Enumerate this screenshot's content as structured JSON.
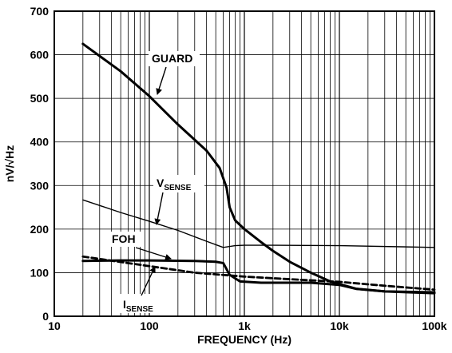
{
  "chart_data": {
    "type": "line",
    "xlabel": "FREQUENCY (Hz)",
    "ylabel": "nV/√Hz",
    "xscale": "log",
    "xlim": [
      10,
      100000
    ],
    "ylim": [
      0,
      700
    ],
    "x_ticks": [
      10,
      100,
      1000,
      10000,
      100000
    ],
    "x_tick_labels": [
      "10",
      "100",
      "1k",
      "10k",
      "100k"
    ],
    "y_ticks": [
      0,
      100,
      200,
      300,
      400,
      500,
      600,
      700
    ],
    "y_tick_labels": [
      "0",
      "100",
      "200",
      "300",
      "400",
      "500",
      "600",
      "700"
    ],
    "grid": true,
    "series": [
      {
        "name": "GUARD",
        "style": "thick-solid",
        "points": [
          [
            20,
            625
          ],
          [
            50,
            562
          ],
          [
            100,
            505
          ],
          [
            200,
            440
          ],
          [
            400,
            380
          ],
          [
            550,
            340
          ],
          [
            650,
            295
          ],
          [
            700,
            250
          ],
          [
            800,
            220
          ],
          [
            1000,
            200
          ],
          [
            1500,
            170
          ],
          [
            2000,
            150
          ],
          [
            3000,
            125
          ],
          [
            5000,
            100
          ],
          [
            8000,
            80
          ],
          [
            15000,
            63
          ],
          [
            30000,
            57
          ],
          [
            100000,
            53
          ]
        ]
      },
      {
        "name": "VSENSE",
        "style": "thin-solid",
        "points": [
          [
            20,
            267
          ],
          [
            50,
            238
          ],
          [
            100,
            218
          ],
          [
            200,
            197
          ],
          [
            400,
            172
          ],
          [
            600,
            158
          ],
          [
            800,
            162
          ],
          [
            1000,
            163
          ],
          [
            2000,
            163
          ],
          [
            10000,
            162
          ],
          [
            100000,
            158
          ]
        ]
      },
      {
        "name": "FOH",
        "style": "thick-solid",
        "points": [
          [
            20,
            127
          ],
          [
            50,
            128
          ],
          [
            100,
            128
          ],
          [
            300,
            127
          ],
          [
            500,
            125
          ],
          [
            600,
            122
          ],
          [
            700,
            95
          ],
          [
            900,
            80
          ],
          [
            1500,
            77
          ],
          [
            5000,
            77
          ],
          [
            10000,
            72
          ],
          [
            15000,
            63
          ],
          [
            30000,
            57
          ],
          [
            100000,
            55
          ]
        ]
      },
      {
        "name": "ISENSE",
        "style": "thick-dashed",
        "points": [
          [
            20,
            137
          ],
          [
            100,
            115
          ],
          [
            300,
            100
          ],
          [
            1000,
            91
          ],
          [
            3000,
            85
          ],
          [
            10000,
            79
          ],
          [
            30000,
            70
          ],
          [
            100000,
            61
          ]
        ]
      }
    ],
    "annotations": [
      {
        "main": "GUARD",
        "sub": ""
      },
      {
        "main": "V",
        "sub": "SENSE"
      },
      {
        "main": "FOH",
        "sub": ""
      },
      {
        "main": "I",
        "sub": "SENSE"
      }
    ]
  }
}
